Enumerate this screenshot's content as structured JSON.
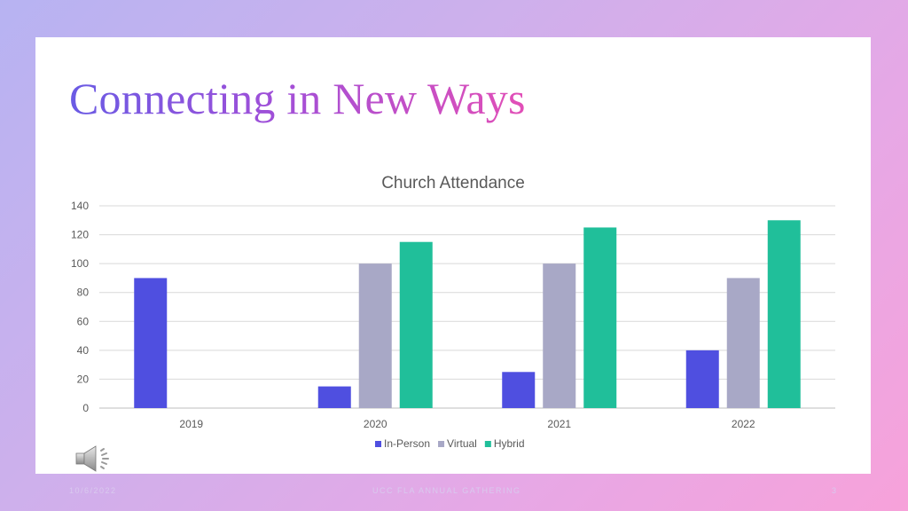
{
  "slide": {
    "title": "Connecting in New Ways",
    "footer_date": "10/6/2022",
    "footer_center": "UCC FLA ANNUAL GATHERING",
    "page_number": "3",
    "audio_icon": "speaker-icon"
  },
  "chart_data": {
    "type": "bar",
    "title": "Church Attendance",
    "categories": [
      "2019",
      "2020",
      "2021",
      "2022"
    ],
    "series": [
      {
        "name": "In-Person",
        "color": "#4f4fe0",
        "values": [
          90,
          15,
          25,
          40
        ]
      },
      {
        "name": "Virtual",
        "color": "#a8a8c6",
        "values": [
          0,
          100,
          100,
          90
        ]
      },
      {
        "name": "Hybrid",
        "color": "#20bf9a",
        "values": [
          0,
          115,
          125,
          130
        ]
      }
    ],
    "ylim": [
      0,
      140
    ],
    "yticks": [
      0,
      20,
      40,
      60,
      80,
      100,
      120,
      140
    ],
    "grid": true,
    "legend": "bottom"
  }
}
